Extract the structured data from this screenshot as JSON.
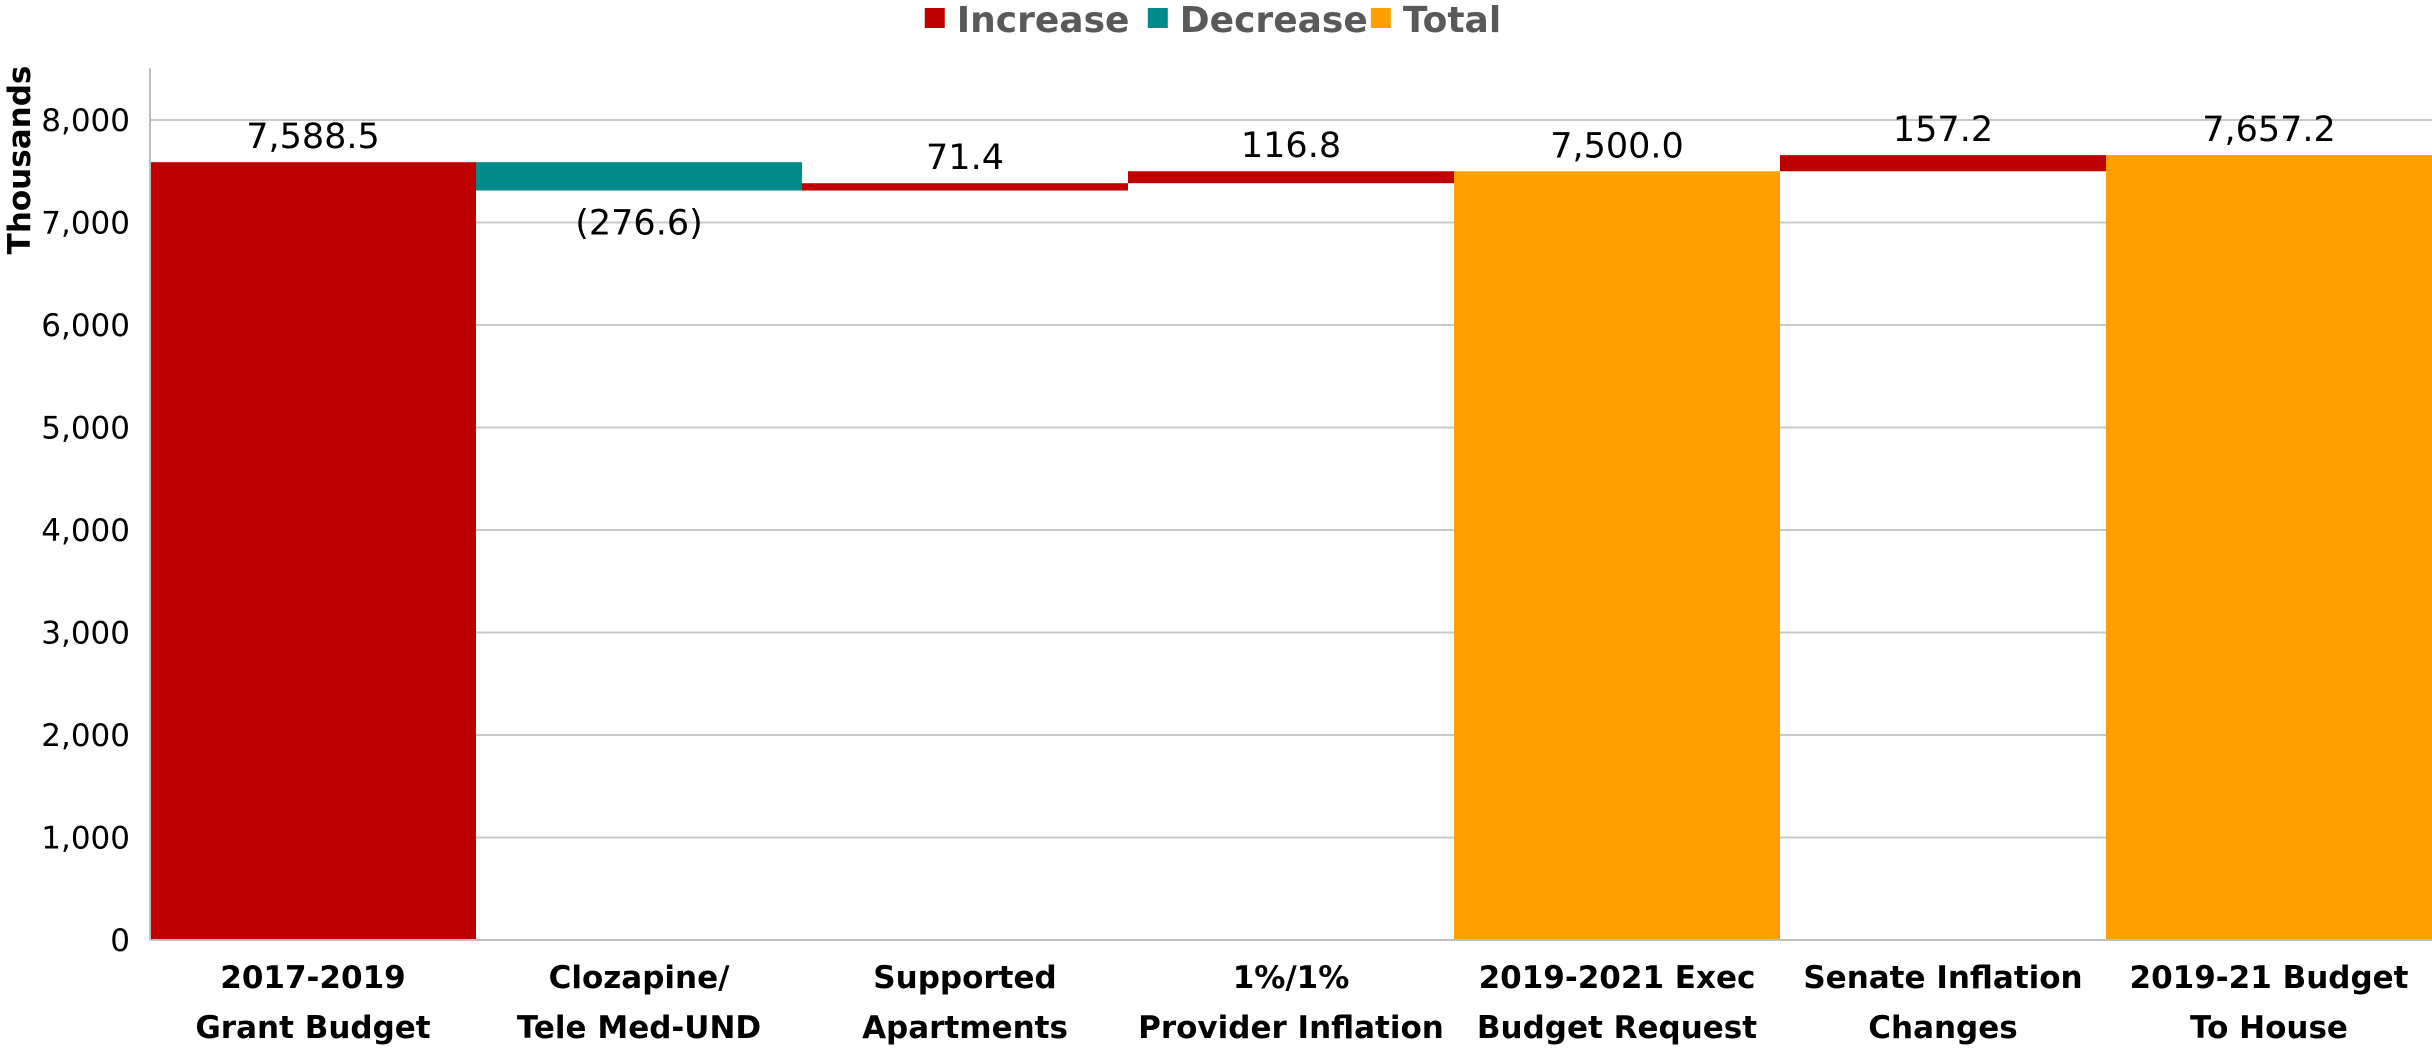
{
  "chart_data": {
    "type": "waterfall",
    "title": "",
    "xlabel": "",
    "ylabel": "Thousands",
    "ylim": [
      0,
      8000
    ],
    "yticks": [
      0,
      1000,
      2000,
      3000,
      4000,
      5000,
      6000,
      7000,
      8000
    ],
    "ytick_labels": [
      "0",
      "1,000",
      "2,000",
      "3,000",
      "4,000",
      "5,000",
      "6,000",
      "7,000",
      "8,000"
    ],
    "grid": true,
    "legend": {
      "placement": "top-center",
      "items": [
        {
          "label": "Increase",
          "color": "#C00000"
        },
        {
          "label": "Decrease",
          "color": "#008B8B"
        },
        {
          "label": "Total",
          "color": "#FF9F00"
        }
      ]
    },
    "categories": [
      [
        "2017-2019",
        "Grant Budget"
      ],
      [
        "Clozapine/",
        "Tele Med-UND"
      ],
      [
        "Supported",
        "Apartments"
      ],
      [
        "1%/1%",
        "Provider Inflation"
      ],
      [
        "2019-2021 Exec",
        "Budget Request"
      ],
      [
        "Senate Inflation",
        "Changes"
      ],
      [
        "2019-21 Budget",
        "To House"
      ]
    ],
    "points": [
      {
        "kind": "increase",
        "start": 0,
        "end": 7588.5,
        "label": "7,588.5"
      },
      {
        "kind": "decrease",
        "start": 7588.5,
        "end": 7311.9,
        "label": "(276.6)"
      },
      {
        "kind": "increase",
        "start": 7311.9,
        "end": 7383.3,
        "label": "71.4"
      },
      {
        "kind": "increase",
        "start": 7383.3,
        "end": 7500.1,
        "label": "116.8"
      },
      {
        "kind": "total",
        "start": 0,
        "end": 7500.0,
        "label": "7,500.0"
      },
      {
        "kind": "increase",
        "start": 7500.0,
        "end": 7657.2,
        "label": "157.2"
      },
      {
        "kind": "total",
        "start": 0,
        "end": 7657.2,
        "label": "7,657.2"
      }
    ]
  }
}
